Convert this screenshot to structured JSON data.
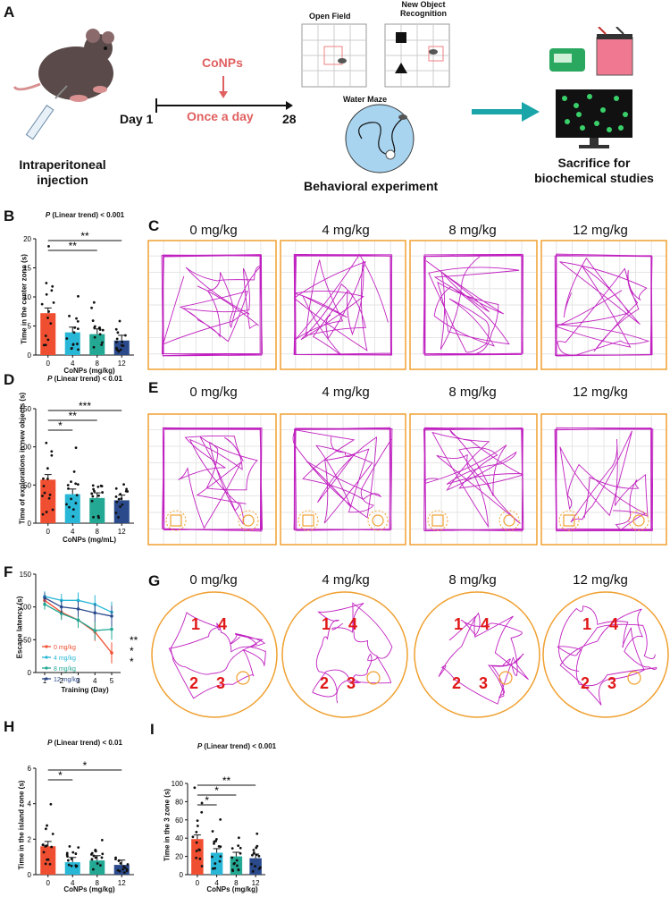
{
  "panel_a": {
    "label": "A",
    "injection_label": "Intraperitoneal injection",
    "day_start": "Day 1",
    "day_end": "28",
    "drug": "CoNPs",
    "schedule": "Once a day",
    "open_field": "Open Field",
    "nor": "New Object Recognition",
    "water_maze": "Water Maze",
    "behavior": "Behavioral experiment",
    "sacrifice": "Sacrifice for biochemical studies"
  },
  "panel_labels": {
    "b": "B",
    "c": "C",
    "d": "D",
    "e": "E",
    "f": "F",
    "g": "G",
    "h": "H",
    "i": "I"
  },
  "doses": [
    "0 mg/kg",
    "4 mg/kg",
    "8 mg/kg",
    "12 mg/kg"
  ],
  "g_numbers": [
    "1",
    "4",
    "2",
    "3"
  ],
  "colors": {
    "c0": "#f04e30",
    "c4": "#28b7d6",
    "c8": "#22a893",
    "c12": "#2a4a8c",
    "track": "#c020c0",
    "frame": "#f0a030"
  },
  "chart_data": [
    {
      "id": "B",
      "type": "bar",
      "title": "P (Linear trend) < 0.001",
      "title_p": "P",
      "title_rest": " (Linear trend) < 0.001",
      "categories": [
        "0",
        "4",
        "8",
        "12"
      ],
      "values": [
        7.2,
        3.9,
        3.6,
        2.5
      ],
      "ylim": [
        0,
        20
      ],
      "yticks": [
        "0",
        "5",
        "10",
        "15",
        "20"
      ],
      "xlabel": "CoNPs (mg/kg)",
      "ylabel": "Time in the center zone (s)",
      "sig": [
        {
          "to": "8",
          "label": "**"
        },
        {
          "to": "12",
          "label": "**"
        }
      ]
    },
    {
      "id": "D",
      "type": "bar",
      "title": "P (Linear trend) < 0.01",
      "title_p": "P",
      "title_rest": " (Linear trend) < 0.01",
      "categories": [
        "0",
        "4",
        "8",
        "12"
      ],
      "values": [
        57,
        38,
        33,
        30
      ],
      "ylim": [
        0,
        150
      ],
      "yticks": [
        "0",
        "50",
        "100",
        "150"
      ],
      "xlabel": "CoNPs (mg/mL)",
      "ylabel": "Time of explorations in new objects (s)",
      "sig": [
        {
          "to": "4",
          "label": "*"
        },
        {
          "to": "8",
          "label": "**"
        },
        {
          "to": "12",
          "label": "***"
        }
      ]
    },
    {
      "id": "F",
      "type": "line",
      "x": [
        1,
        2,
        3,
        4,
        5
      ],
      "xticks": [
        "1",
        "2",
        "3",
        "4",
        "5"
      ],
      "ylim": [
        0,
        150
      ],
      "yticks": [
        "0",
        "50",
        "100",
        "150"
      ],
      "xlabel": "Training (Day)",
      "ylabel": "Escape latency (s)",
      "series": [
        {
          "name": "0 mg/kg",
          "values": [
            110,
            92,
            80,
            62,
            30
          ]
        },
        {
          "name": "4 mg/kg",
          "values": [
            116,
            110,
            110,
            104,
            92
          ]
        },
        {
          "name": "8 mg/kg",
          "values": [
            104,
            90,
            80,
            64,
            66
          ]
        },
        {
          "name": "12 mg/kg",
          "values": [
            114,
            100,
            97,
            91,
            86
          ]
        }
      ],
      "sig_labels": [
        "**",
        "*",
        "*"
      ]
    },
    {
      "id": "H",
      "type": "bar",
      "title": "P (Linear trend) < 0.01",
      "title_p": "P",
      "title_rest": " (Linear trend) < 0.01",
      "categories": [
        "0",
        "4",
        "8",
        "12"
      ],
      "values": [
        1.6,
        0.7,
        0.8,
        0.55
      ],
      "ylim": [
        0,
        6
      ],
      "yticks": [
        "0",
        "2",
        "4",
        "6"
      ],
      "xlabel": "CoNPs (mg/kg)",
      "ylabel": "Time in the island zone (s)",
      "sig": [
        {
          "to": "4",
          "label": "*"
        },
        {
          "to": "12",
          "label": "*"
        }
      ]
    },
    {
      "id": "I",
      "type": "bar",
      "title": "P (Linear trend) < 0.001",
      "title_p": "P",
      "title_rest": " (Linear trend) < 0.001",
      "categories": [
        "0",
        "4",
        "8",
        "12"
      ],
      "values": [
        39,
        24,
        20,
        18
      ],
      "ylim": [
        0,
        100
      ],
      "yticks": [
        "0",
        "20",
        "40",
        "60",
        "80",
        "100"
      ],
      "xlabel": "CoNPs (mg/kg)",
      "ylabel": "Time in the 3 zone (s)",
      "sig": [
        {
          "to": "4",
          "label": "*"
        },
        {
          "to": "8",
          "label": "*"
        },
        {
          "to": "12",
          "label": "**"
        }
      ]
    }
  ]
}
